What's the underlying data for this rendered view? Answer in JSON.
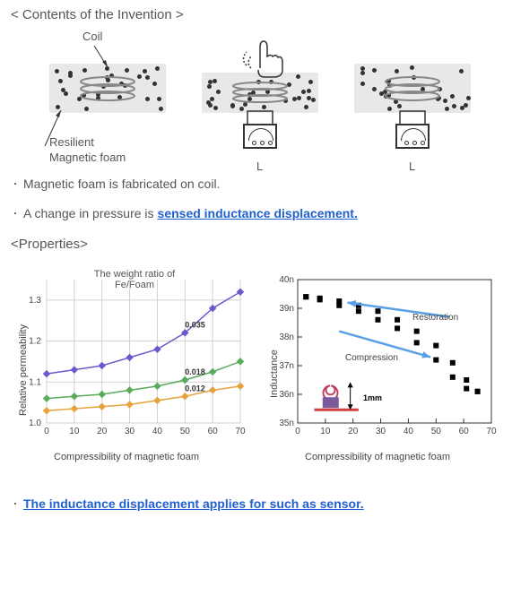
{
  "header": {
    "title": "< Contents of the Invention >"
  },
  "diagram": {
    "coil_label": "Coil",
    "foam_label_1": "Resilient",
    "foam_label_2": "Magnetic foam",
    "L_label": "L"
  },
  "bullets": {
    "b1_pre": "Magnetic foam is fabricated on coil.",
    "b2_pre": "A change in pressure is ",
    "b2_link": "sensed inductance displacement.",
    "b3_link": "The inductance displacement applies for such as sensor."
  },
  "properties_header": "<Properties>",
  "chart1": {
    "type": "line",
    "title": "The weight ratio of\nFe/Foam",
    "xlabel": "Compressibility of magnetic foam",
    "ylabel": "Relative permeability",
    "xlim": [
      0,
      70
    ],
    "ylim": [
      1.0,
      1.35
    ],
    "xticks": [
      0,
      10,
      20,
      30,
      40,
      50,
      60,
      70
    ],
    "yticks": [
      1.0,
      1.1,
      1.2,
      1.3
    ],
    "grid_color": "#d0d0d0",
    "series": [
      {
        "label": "0.035",
        "color": "#6a5acd",
        "y": [
          1.12,
          1.13,
          1.14,
          1.16,
          1.18,
          1.22,
          1.28,
          1.32
        ]
      },
      {
        "label": "0.018",
        "color": "#5aaa5a",
        "y": [
          1.06,
          1.065,
          1.07,
          1.08,
          1.09,
          1.105,
          1.125,
          1.15
        ]
      },
      {
        "label": "0.012",
        "color": "#e6a23c",
        "y": [
          1.03,
          1.035,
          1.04,
          1.045,
          1.055,
          1.065,
          1.08,
          1.09
        ]
      }
    ],
    "marker": "diamond",
    "label_fontsize": 11,
    "tick_fontsize": 10
  },
  "chart2": {
    "type": "scatter",
    "xlabel": "Compressibility of magnetic foam",
    "ylabel": "Inductance",
    "xlim": [
      0,
      70
    ],
    "ylim": [
      35,
      40
    ],
    "xticks": [
      0,
      10,
      20,
      30,
      40,
      50,
      60,
      70
    ],
    "yticks": [
      "35n",
      "36n",
      "37n",
      "38n",
      "39n",
      "40n"
    ],
    "marker_color": "#000000",
    "marker": "square",
    "restoration_label": "Restoration",
    "compression_label": "Compression",
    "arrow_color": "#5aa0e6",
    "inset_label": "1mm",
    "comp_y": [
      39.4,
      39.3,
      39.1,
      38.9,
      38.6,
      38.3,
      37.8,
      37.2,
      36.6,
      36.2,
      36.1
    ],
    "rest_y": [
      36.1,
      36.5,
      37.1,
      37.7,
      38.2,
      38.6,
      38.9,
      39.1,
      39.25,
      39.35,
      39.4
    ],
    "x_points": [
      3,
      8,
      15,
      22,
      29,
      36,
      43,
      50,
      56,
      61,
      65
    ]
  },
  "colors": {
    "text": "#555555",
    "link": "#2060d0",
    "bg": "#ffffff"
  }
}
